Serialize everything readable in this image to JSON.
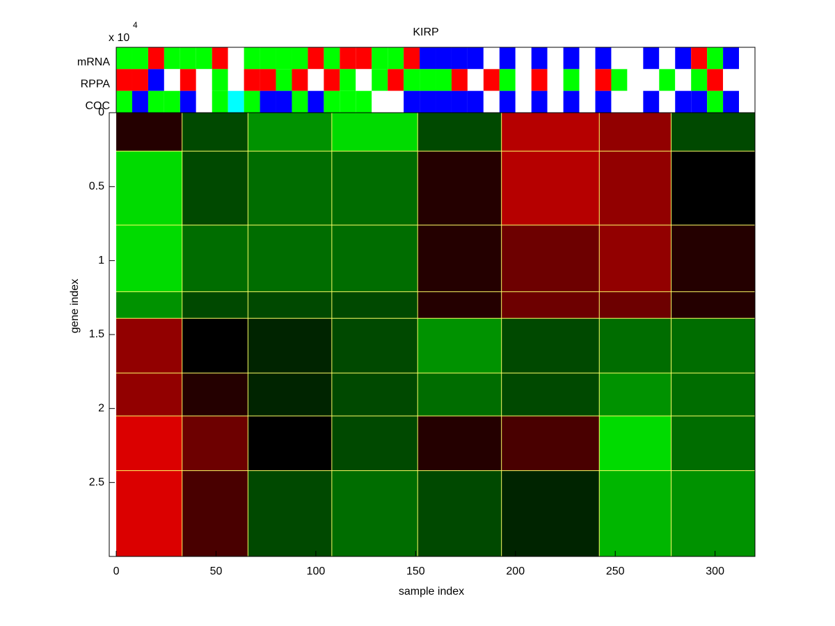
{
  "chart_data": {
    "type": "heatmap",
    "title": "KIRP",
    "xlabel": "sample index",
    "ylabel": "gene index",
    "y_exponent": {
      "base": "x 10",
      "power": "4"
    },
    "xlim": [
      -3.5,
      320
    ],
    "ylim": [
      0,
      3
    ],
    "xticks": [
      0,
      50,
      100,
      150,
      200,
      250,
      300
    ],
    "yticks": [
      0,
      0.5,
      1,
      1.5,
      2,
      2.5
    ],
    "clim": [
      -0.7,
      0.7
    ],
    "separator_color": "#ffff66",
    "heatmap": {
      "x_boundaries": [
        0,
        33,
        66,
        108,
        151,
        193,
        242,
        278,
        320
      ],
      "y_boundaries": [
        0,
        0.26,
        0.76,
        1.21,
        1.39,
        1.76,
        2.05,
        2.42,
        3
      ],
      "values": [
        [
          0.1,
          -0.2,
          -0.4,
          -0.6,
          -0.2,
          0.5,
          0.4,
          -0.2
        ],
        [
          -0.6,
          -0.2,
          -0.3,
          -0.3,
          0.1,
          0.5,
          0.4,
          0.0
        ],
        [
          -0.6,
          -0.3,
          -0.3,
          -0.3,
          0.1,
          0.3,
          0.4,
          0.1
        ],
        [
          -0.4,
          -0.2,
          -0.2,
          -0.2,
          0.1,
          0.3,
          0.3,
          0.1
        ],
        [
          0.4,
          0.0,
          -0.1,
          -0.2,
          -0.4,
          -0.2,
          -0.3,
          -0.3
        ],
        [
          0.4,
          0.1,
          -0.1,
          -0.2,
          -0.3,
          -0.2,
          -0.4,
          -0.3
        ],
        [
          0.6,
          0.3,
          0.0,
          -0.2,
          0.1,
          0.2,
          -0.6,
          -0.3
        ],
        [
          0.6,
          0.2,
          -0.2,
          -0.3,
          -0.2,
          -0.1,
          -0.5,
          -0.4
        ]
      ]
    },
    "track_block": 8,
    "tracks": [
      {
        "name": "mRNA",
        "colors": [
          "lime",
          "lime",
          "red",
          "lime",
          "lime",
          "lime",
          "red",
          "white",
          "lime",
          "lime",
          "lime",
          "lime",
          "red",
          "lime",
          "red",
          "red",
          "lime",
          "lime",
          "red",
          "blue",
          "blue",
          "blue",
          "blue",
          "white",
          "blue",
          "white",
          "blue",
          "white",
          "blue",
          "white",
          "blue",
          "white",
          "white",
          "blue",
          "white",
          "blue",
          "red",
          "lime",
          "blue",
          "white"
        ]
      },
      {
        "name": "RPPA",
        "colors": [
          "red",
          "red",
          "blue",
          "white",
          "red",
          "white",
          "lime",
          "white",
          "red",
          "red",
          "lime",
          "red",
          "white",
          "red",
          "lime",
          "white",
          "lime",
          "red",
          "lime",
          "lime",
          "lime",
          "red",
          "white",
          "red",
          "lime",
          "white",
          "red",
          "white",
          "lime",
          "white",
          "red",
          "lime",
          "white",
          "white",
          "lime",
          "white",
          "lime",
          "red",
          "white",
          "white"
        ]
      },
      {
        "name": "COC",
        "colors": [
          "lime",
          "blue",
          "lime",
          "lime",
          "blue",
          "white",
          "lime",
          "cyan",
          "lime",
          "blue",
          "blue",
          "lime",
          "blue",
          "lime",
          "lime",
          "lime",
          "white",
          "white",
          "blue",
          "blue",
          "blue",
          "blue",
          "blue",
          "white",
          "blue",
          "white",
          "blue",
          "white",
          "blue",
          "white",
          "blue",
          "white",
          "white",
          "blue",
          "white",
          "blue",
          "blue",
          "lime",
          "blue",
          "white"
        ]
      }
    ]
  }
}
